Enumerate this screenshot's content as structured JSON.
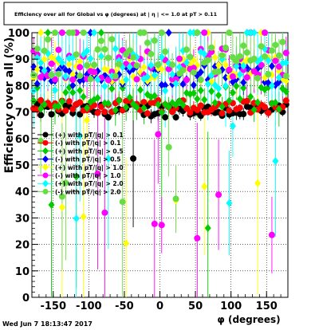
{
  "chart_data": {
    "type": "scatter",
    "title": "Efficiency over all for Global vs φ (degrees) at | η | <= 1.0 at pT > 0.11",
    "xlabel": "φ (degrees)",
    "ylabel": "Efficiency over all (%)",
    "xlim": [
      -180,
      180
    ],
    "ylim": [
      0,
      100
    ],
    "x_ticks": [
      -150,
      -100,
      -50,
      0,
      50,
      100,
      150
    ],
    "y_ticks": [
      0,
      10,
      20,
      30,
      40,
      50,
      60,
      70,
      80,
      90,
      100
    ],
    "grid": true,
    "legend_position": "left-middle",
    "timestamp": "Wed Jun  7 18:13:47 2017",
    "series": [
      {
        "name": "(+) with pT/|q| > 0.1",
        "color": "#000000",
        "marker": "circle",
        "base": 70.5,
        "spread": 2.5,
        "err": 2,
        "outlier": 0.02
      },
      {
        "name": "(-) with pT/|q| > 0.1",
        "color": "#ff0000",
        "marker": "circle",
        "base": 72,
        "spread": 2.5,
        "err": 2,
        "outlier": 0.02
      },
      {
        "name": "(+) with pT/|q| > 0.5",
        "color": "#00cc00",
        "marker": "diamond",
        "base": 75,
        "spread": 5,
        "err": 5,
        "outlier": 0.08
      },
      {
        "name": "(-) with pT/|q| > 0.5",
        "color": "#0000ff",
        "marker": "diamond",
        "base": 84,
        "spread": 4,
        "err": 4,
        "outlier": 0.05
      },
      {
        "name": "(+) with pT/|q| > 1.0",
        "color": "#ffff00",
        "marker": "diamond",
        "base": 86,
        "spread": 5,
        "err": 6,
        "outlier": 0.1
      },
      {
        "name": "(-) with pT/|q| > 1.0",
        "color": "#ff00ff",
        "marker": "circle",
        "base": 88,
        "spread": 6,
        "err": 8,
        "outlier": 0.15
      },
      {
        "name": "(+) with pT/|q| > 2.0",
        "color": "#00ffff",
        "marker": "diamond",
        "base": 86,
        "spread": 8,
        "err": 12,
        "outlier": 0.22
      },
      {
        "name": "(-) with pT/|q| > 2.0",
        "color": "#66dd44",
        "marker": "circle",
        "base": 90,
        "spread": 8,
        "err": 10,
        "outlier": 0.22
      }
    ]
  }
}
